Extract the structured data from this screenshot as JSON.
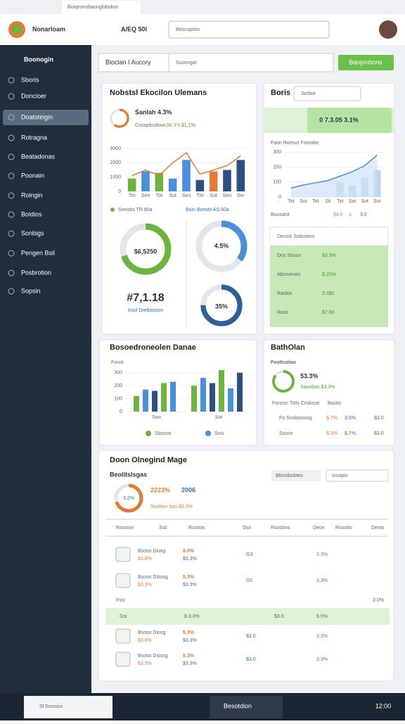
{
  "browser": {
    "tab": "Bioqeonsbaonglsbolion"
  },
  "header": {
    "brand": "Nonarloam",
    "selector": "A/EQ 50I",
    "search": "Bescoptsin"
  },
  "sidebar": {
    "title": "Boonogin",
    "items": [
      "Sboris",
      "Doncioer",
      "Doatsteigin",
      "Rotragna",
      "Beatadonas",
      "Poonain",
      "Roingin",
      "Boidios",
      "Sonbigs",
      "Pengen Bsil",
      "Posbrotion",
      "Sopsin"
    ]
  },
  "toolbar": {
    "dropdown": "Bloclan I Aucory",
    "search": "Susongar",
    "button": "Baojonbons"
  },
  "overview": {
    "title": "Nobstsl Ekocilon Ulemans",
    "kpi": "Sanlah 4.3%",
    "kpi_note": "Cooqebudson",
    "kpi_a": "3B.3%",
    "kpi_b": "$1.1%",
    "chart": {
      "categories": [
        "Tot",
        "Seri",
        "Tot",
        "Sut",
        "Seri",
        "Tnt",
        "Sot",
        "Seri",
        "Ser"
      ],
      "bars": [
        900,
        1400,
        1300,
        900,
        2200,
        800,
        1400,
        1500,
        2200
      ],
      "bar_colors": [
        "#6db33f",
        "#4a90d9",
        "#6db33f",
        "#4a90d9",
        "#4a90d9",
        "#2f4f7f",
        "#e07b39",
        "#2f4f7f",
        "#2f4f7f"
      ],
      "line": [
        1100,
        1500,
        1100,
        2000,
        2700,
        1200,
        1500,
        1800,
        2500
      ],
      "line_color": "#e07b39",
      "ylim": [
        0,
        3300
      ],
      "yticks": [
        0,
        1000,
        2000,
        3000
      ]
    },
    "legend": [
      "Sonobs TR.80a",
      "Boin Bonsts AS.60a"
    ],
    "donut_a": {
      "label": "$6,5250",
      "share": 0.7
    },
    "donut_b": {
      "label": "4.5%",
      "share": 0.35
    },
    "total": "#7,1.18",
    "total_note": "Asol Drebistsion",
    "donut_c": {
      "label": "35%",
      "share": 0.75
    }
  },
  "stats": {
    "title": "Boris",
    "search": "Sorbot",
    "banner": "0 7.3.05 3.1%",
    "chart": {
      "title": "Foon Rortsut Forsobe",
      "categories": [
        "Tot",
        "Soi",
        "Tot",
        "Sti",
        "Tot",
        "Sot",
        "Sot",
        "Sut"
      ],
      "line": [
        60,
        80,
        95,
        110,
        140,
        170,
        210,
        280
      ],
      "bars": [
        0,
        0,
        0,
        0,
        100,
        80,
        130,
        180
      ],
      "ylim": [
        0,
        320
      ],
      "yticks": [
        0,
        100,
        200,
        300
      ]
    },
    "foot": [
      "Bousaist",
      "$4.0",
      "3",
      "3.0"
    ],
    "table": {
      "header": "Donsis Sslionbos",
      "rows": [
        [
          "Dos Sbosn",
          "$3.3%"
        ],
        [
          "Abrovenes",
          "$.25%"
        ],
        [
          "Raslos",
          "3.3$0"
        ],
        [
          "Rask",
          "$7.80"
        ]
      ]
    }
  },
  "breakdown": {
    "title": "Bosoedroneolen Danae",
    "subtitle": "Fonst",
    "chart": {
      "categories": [
        "Soo",
        "Sot"
      ],
      "groups": [
        [
          120,
          170,
          160,
          220,
          230
        ],
        [
          200,
          260,
          220,
          320,
          180,
          300
        ]
      ],
      "colors": [
        "#6db33f",
        "#4a90d9",
        "#2f4f7f"
      ],
      "ylim": [
        0,
        380
      ],
      "yticks": [
        0,
        100,
        200,
        300
      ]
    },
    "legend": [
      "Sbsoos",
      "Sois"
    ]
  },
  "plan": {
    "title": "BathOlan",
    "subtitle": "Feottsoloo",
    "kpi": "53.3%",
    "kpi_note": "Saonbas $3.3%",
    "head": [
      "Fonssn Tstls Cnsksse",
      "Bastis"
    ],
    "rows": [
      [
        "Fo Sosbossiog",
        "$.7%",
        "3.5%",
        "$3.0"
      ],
      [
        "Ssosn",
        "$.3%",
        "$.7%",
        "$3.0"
      ]
    ]
  },
  "orders": {
    "title": "Doon Olnegind Mage",
    "subtitle": "Beolitslsgas",
    "donut": "3.2%",
    "kpi_a": "2223%",
    "kpi_b": "2006",
    "kpi_note": "Ssoltion son $3.3%",
    "filter": "Bbsotbobtes",
    "search": "Iosopin",
    "columns": [
      "Rsosion",
      "Ssti",
      "Rsobos",
      "Dsn",
      "Rsosbos",
      "Deon",
      "Rsoobs",
      "Desto"
    ],
    "rows": [
      [
        "Bsoso Diosg",
        "$3.8%",
        "8.0%",
        "$3.3%",
        "G3",
        "3.3%"
      ],
      [
        "Bsoso Dsiosg",
        "$3.3%",
        "5.3%",
        "$3.3%",
        "D3",
        "3.3%"
      ]
    ],
    "section": [
      "Fssi",
      "3.0%"
    ],
    "highlight": [
      "Gsi",
      "8.3.3%",
      "$3.0",
      "$.5%"
    ],
    "rows2": [
      [
        "Bsoso Diosg",
        "$3.8%",
        "5.3%",
        "$3.3%",
        "$3.0",
        "3.3%"
      ],
      [
        "Bsoso Dsiosg",
        "$3.3%",
        "5.3%",
        "$3.3%",
        "$3.0",
        "3.3%"
      ]
    ]
  },
  "taskbar": {
    "search": "Sl Soosion",
    "app": "Besotdion",
    "clock": "12:00"
  }
}
